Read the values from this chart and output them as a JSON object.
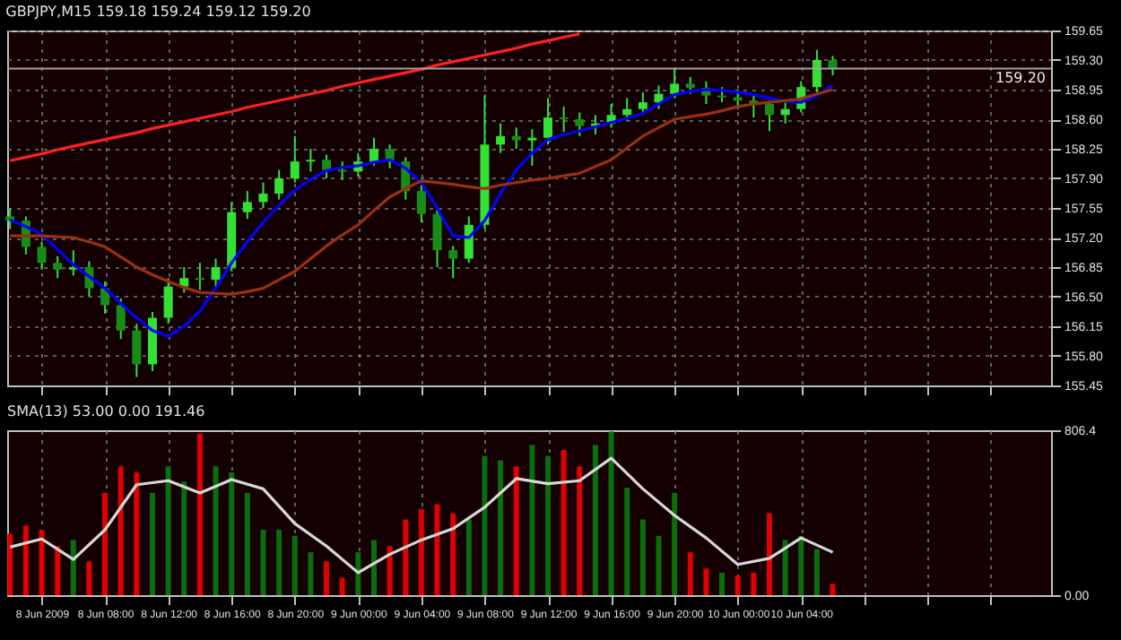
{
  "chart_data": [
    {
      "type": "candlestick",
      "title": "GBPJPY,M15 159.18 159.24 159.12 159.20",
      "x": [
        "2009-06-08T02:00",
        "2009-06-08T03:00",
        "2009-06-08T04:00",
        "2009-06-08T05:00",
        "2009-06-08T06:00",
        "2009-06-08T07:00",
        "2009-06-08T08:00",
        "2009-06-08T09:00",
        "2009-06-08T10:00",
        "2009-06-08T11:00",
        "2009-06-08T12:00",
        "2009-06-08T13:00",
        "2009-06-08T14:00",
        "2009-06-08T15:00",
        "2009-06-08T16:00",
        "2009-06-08T17:00",
        "2009-06-08T18:00",
        "2009-06-08T19:00",
        "2009-06-08T20:00",
        "2009-06-08T21:00",
        "2009-06-08T22:00",
        "2009-06-08T23:00",
        "2009-06-09T00:00",
        "2009-06-09T01:00",
        "2009-06-09T02:00",
        "2009-06-09T03:00",
        "2009-06-09T04:00",
        "2009-06-09T05:00",
        "2009-06-09T06:00",
        "2009-06-09T07:00",
        "2009-06-09T08:00",
        "2009-06-09T09:00",
        "2009-06-09T10:00",
        "2009-06-09T11:00",
        "2009-06-09T12:00",
        "2009-06-09T13:00",
        "2009-06-09T14:00",
        "2009-06-09T15:00",
        "2009-06-09T16:00",
        "2009-06-09T17:00",
        "2009-06-09T18:00",
        "2009-06-09T19:00",
        "2009-06-09T20:00",
        "2009-06-09T21:00",
        "2009-06-09T22:00",
        "2009-06-09T23:00",
        "2009-06-10T00:00",
        "2009-06-10T01:00",
        "2009-06-10T02:00",
        "2009-06-10T03:00",
        "2009-06-10T04:00",
        "2009-06-10T05:00",
        "2009-06-10T06:00"
      ],
      "ohlc": [
        [
          157.45,
          157.55,
          157.3,
          157.4
        ],
        [
          157.4,
          157.45,
          157.0,
          157.09
        ],
        [
          157.09,
          157.15,
          156.82,
          156.9
        ],
        [
          156.9,
          156.98,
          156.72,
          156.82
        ],
        [
          156.82,
          157.05,
          156.75,
          156.85
        ],
        [
          156.85,
          156.92,
          156.5,
          156.6
        ],
        [
          156.6,
          156.68,
          156.3,
          156.4
        ],
        [
          156.4,
          156.48,
          156.0,
          156.1
        ],
        [
          156.1,
          156.18,
          155.55,
          155.7
        ],
        [
          155.7,
          156.32,
          155.62,
          156.25
        ],
        [
          156.25,
          156.72,
          156.18,
          156.62
        ],
        [
          156.62,
          156.85,
          156.55,
          156.72
        ],
        [
          156.72,
          156.9,
          156.58,
          156.7
        ],
        [
          156.7,
          156.95,
          156.6,
          156.85
        ],
        [
          156.85,
          157.62,
          156.8,
          157.5
        ],
        [
          157.5,
          157.75,
          157.42,
          157.62
        ],
        [
          157.62,
          157.85,
          157.55,
          157.72
        ],
        [
          157.72,
          158.0,
          157.65,
          157.9
        ],
        [
          157.9,
          158.4,
          157.85,
          158.1
        ],
        [
          158.1,
          158.25,
          157.98,
          158.12
        ],
        [
          158.12,
          158.18,
          157.9,
          158.0
        ],
        [
          158.0,
          158.1,
          157.88,
          157.98
        ],
        [
          157.98,
          158.2,
          157.92,
          158.1
        ],
        [
          158.1,
          158.38,
          158.05,
          158.25
        ],
        [
          158.25,
          158.3,
          158.02,
          158.1
        ],
        [
          158.1,
          158.15,
          157.65,
          157.75
        ],
        [
          157.75,
          157.82,
          157.38,
          157.48
        ],
        [
          157.48,
          157.55,
          156.85,
          157.05
        ],
        [
          157.05,
          157.1,
          156.72,
          156.95
        ],
        [
          156.95,
          157.45,
          156.9,
          157.35
        ],
        [
          157.35,
          158.88,
          157.3,
          158.3
        ],
        [
          158.3,
          158.55,
          158.2,
          158.4
        ],
        [
          158.4,
          158.5,
          158.25,
          158.35
        ],
        [
          158.35,
          158.48,
          158.05,
          158.38
        ],
        [
          158.38,
          158.85,
          158.3,
          158.62
        ],
        [
          158.62,
          158.75,
          158.45,
          158.6
        ],
        [
          158.6,
          158.68,
          158.4,
          158.52
        ],
        [
          158.52,
          158.65,
          158.42,
          158.55
        ],
        [
          158.55,
          158.78,
          158.5,
          158.65
        ],
        [
          158.65,
          158.85,
          158.58,
          158.72
        ],
        [
          158.72,
          158.92,
          158.65,
          158.8
        ],
        [
          158.8,
          159.0,
          158.72,
          158.9
        ],
        [
          158.9,
          159.2,
          158.85,
          159.02
        ],
        [
          159.02,
          159.1,
          158.9,
          158.97
        ],
        [
          158.97,
          159.05,
          158.78,
          158.88
        ],
        [
          158.88,
          158.98,
          158.8,
          158.86
        ],
        [
          158.86,
          158.95,
          158.72,
          158.82
        ],
        [
          158.82,
          158.9,
          158.62,
          158.78
        ],
        [
          158.78,
          158.82,
          158.46,
          158.65
        ],
        [
          158.65,
          158.8,
          158.55,
          158.72
        ],
        [
          158.72,
          159.05,
          158.68,
          158.98
        ],
        [
          158.98,
          159.42,
          158.92,
          159.3
        ],
        [
          159.3,
          159.35,
          159.12,
          159.2
        ]
      ],
      "series": [
        {
          "type": "line",
          "color": "#0000ff",
          "values": [
            157.41,
            157.33,
            157.24,
            157.06,
            156.88,
            156.74,
            156.6,
            156.42,
            156.25,
            156.1,
            156.03,
            156.15,
            156.33,
            156.6,
            156.9,
            157.15,
            157.38,
            157.58,
            157.76,
            157.89,
            157.99,
            158.03,
            158.05,
            158.09,
            158.12,
            158.02,
            157.85,
            157.55,
            157.22,
            157.2,
            157.4,
            157.72,
            158.0,
            158.2,
            158.36,
            158.42,
            158.46,
            158.51,
            158.56,
            158.61,
            158.67,
            158.78,
            158.89,
            158.93,
            158.95,
            158.94,
            158.92,
            158.89,
            158.85,
            158.81,
            158.8,
            158.88,
            159.0
          ]
        },
        {
          "type": "line",
          "color": "#9a3010",
          "values": [
            157.22,
            157.22,
            157.22,
            157.21,
            157.2,
            157.15,
            157.09,
            156.97,
            156.85,
            156.76,
            156.68,
            156.61,
            156.55,
            156.54,
            156.53,
            156.56,
            156.6,
            156.7,
            156.8,
            156.95,
            157.1,
            157.23,
            157.35,
            157.52,
            157.68,
            157.78,
            157.87,
            157.85,
            157.83,
            157.8,
            157.78,
            157.82,
            157.85,
            157.88,
            157.9,
            157.93,
            157.96,
            158.04,
            158.12,
            158.26,
            158.4,
            158.5,
            158.6,
            158.63,
            158.66,
            158.7,
            158.75,
            158.78,
            158.8,
            158.82,
            158.84,
            158.9,
            158.95
          ]
        },
        {
          "type": "line",
          "color": "#ff2020",
          "values": [
            158.11,
            158.15,
            158.19,
            158.24,
            158.28,
            158.32,
            158.36,
            158.4,
            158.44,
            158.49,
            158.53,
            158.57,
            158.61,
            158.65,
            158.69,
            158.74,
            158.78,
            158.82,
            158.86,
            158.9,
            158.94,
            158.99,
            159.03,
            159.07,
            159.11,
            159.15,
            159.19,
            159.24,
            159.28,
            159.32,
            159.36,
            159.4,
            159.44,
            159.49,
            159.53,
            159.57,
            159.61,
            null,
            null,
            null,
            null,
            null,
            null,
            null,
            null,
            null,
            null,
            null,
            null,
            null,
            null,
            null,
            null
          ]
        }
      ],
      "xlim": [
        "2009-06-08T01:49",
        "2009-06-10T19:48"
      ],
      "xticks": [
        {
          "value": "2009-06-08T04:00",
          "label": null
        },
        {
          "value": "2009-06-08T08:00",
          "label": null
        },
        {
          "value": "2009-06-08T12:00",
          "label": null
        },
        {
          "value": "2009-06-08T16:00",
          "label": null
        },
        {
          "value": "2009-06-08T20:00",
          "label": null
        },
        {
          "value": "2009-06-09T00:00",
          "label": null
        },
        {
          "value": "2009-06-09T04:00",
          "label": null
        },
        {
          "value": "2009-06-09T08:00",
          "label": null
        },
        {
          "value": "2009-06-09T12:00",
          "label": null
        },
        {
          "value": "2009-06-09T16:00",
          "label": null
        },
        {
          "value": "2009-06-09T20:00",
          "label": null
        },
        {
          "value": "2009-06-10T00:00",
          "label": null
        },
        {
          "value": "2009-06-10T04:00",
          "label": null
        },
        {
          "value": "2009-06-10T08:00",
          "label": null
        },
        {
          "value": "2009-06-10T12:00",
          "label": null
        },
        {
          "value": "2009-06-10T16:00",
          "label": null
        }
      ],
      "ylim": [
        155.45,
        159.65
      ],
      "yticks": [
        155.45,
        {
          "value": 155.8,
          "label": "155.80"
        },
        156.15,
        {
          "value": 156.5,
          "label": "156.50"
        },
        156.85,
        {
          "value": 157.2,
          "label": "157.20"
        },
        157.55,
        {
          "value": 157.9,
          "label": "157.90"
        },
        158.25,
        {
          "value": 158.6,
          "label": "158.60"
        },
        158.95,
        {
          "value": 159.3,
          "label": "159.30"
        },
        159.65
      ],
      "grid": true,
      "tick_labels": "y",
      "ref_lines": [
        {
          "axis": "y",
          "value": 159.2,
          "label": "159.20",
          "color": "#a0a0a0"
        }
      ]
    },
    {
      "type": "bar",
      "title": "SMA(13) 53.00 0.00 191.46",
      "x": [
        "2009-06-08T02:00",
        "2009-06-08T03:00",
        "2009-06-08T04:00",
        "2009-06-08T05:00",
        "2009-06-08T06:00",
        "2009-06-08T07:00",
        "2009-06-08T08:00",
        "2009-06-08T09:00",
        "2009-06-08T10:00",
        "2009-06-08T11:00",
        "2009-06-08T12:00",
        "2009-06-08T13:00",
        "2009-06-08T14:00",
        "2009-06-08T15:00",
        "2009-06-08T16:00",
        "2009-06-08T17:00",
        "2009-06-08T18:00",
        "2009-06-08T19:00",
        "2009-06-08T20:00",
        "2009-06-08T21:00",
        "2009-06-08T22:00",
        "2009-06-08T23:00",
        "2009-06-09T00:00",
        "2009-06-09T01:00",
        "2009-06-09T02:00",
        "2009-06-09T03:00",
        "2009-06-09T04:00",
        "2009-06-09T05:00",
        "2009-06-09T06:00",
        "2009-06-09T07:00",
        "2009-06-09T08:00",
        "2009-06-09T09:00",
        "2009-06-09T10:00",
        "2009-06-09T11:00",
        "2009-06-09T12:00",
        "2009-06-09T13:00",
        "2009-06-09T14:00",
        "2009-06-09T15:00",
        "2009-06-09T16:00",
        "2009-06-09T17:00",
        "2009-06-09T18:00",
        "2009-06-09T19:00",
        "2009-06-09T20:00",
        "2009-06-09T21:00",
        "2009-06-09T22:00",
        "2009-06-09T23:00",
        "2009-06-10T00:00",
        "2009-06-10T01:00",
        "2009-06-10T02:00",
        "2009-06-10T03:00",
        "2009-06-10T04:00",
        "2009-06-10T05:00",
        "2009-06-10T06:00"
      ],
      "series": [
        {
          "type": "bar",
          "values": [
            300,
            340,
            320,
            240,
            270,
            165,
            500,
            630,
            600,
            500,
            630,
            555,
            790,
            630,
            600,
            500,
            320,
            320,
            290,
            210,
            165,
            85,
            210,
            270,
            240,
            370,
            420,
            445,
            400,
            370,
            680,
            660,
            630,
            735,
            680,
            710,
            630,
            735,
            800,
            525,
            370,
            290,
            500,
            210,
            130,
            110,
            95,
            110,
            400,
            270,
            290,
            225,
            55
          ],
          "colors": [
            "#e00000",
            "#e00000",
            "#e00000",
            "#e00000",
            "#0a6e0a",
            "#e00000",
            "#e00000",
            "#e00000",
            "#e00000",
            "#0a6e0a",
            "#0a6e0a",
            "#0a6e0a",
            "#e00000",
            "#0a6e0a",
            "#0a6e0a",
            "#0a6e0a",
            "#0a6e0a",
            "#0a6e0a",
            "#0a6e0a",
            "#0a6e0a",
            "#e00000",
            "#e00000",
            "#0a6e0a",
            "#0a6e0a",
            "#e00000",
            "#e00000",
            "#e00000",
            "#e00000",
            "#e00000",
            "#0a6e0a",
            "#0a6e0a",
            "#0a6e0a",
            "#e00000",
            "#0a6e0a",
            "#0a6e0a",
            "#e00000",
            "#e00000",
            "#0a6e0a",
            "#0a6e0a",
            "#0a6e0a",
            "#0a6e0a",
            "#0a6e0a",
            "#0a6e0a",
            "#e00000",
            "#e00000",
            "#0a6e0a",
            "#e00000",
            "#e00000",
            "#e00000",
            "#0a6e0a",
            "#0a6e0a",
            "#0a6e0a",
            "#e00000"
          ]
        },
        {
          "type": "line",
          "color": "#d8d8d8",
          "x": [
            "2009-06-08T02:00",
            "2009-06-08T04:00",
            "2009-06-08T06:00",
            "2009-06-08T08:00",
            "2009-06-08T10:00",
            "2009-06-08T12:00",
            "2009-06-08T14:00",
            "2009-06-08T16:00",
            "2009-06-08T18:00",
            "2009-06-08T20:00",
            "2009-06-08T22:00",
            "2009-06-09T00:00",
            "2009-06-09T02:00",
            "2009-06-09T04:00",
            "2009-06-09T06:00",
            "2009-06-09T08:00",
            "2009-06-09T10:00",
            "2009-06-09T12:00",
            "2009-06-09T14:00",
            "2009-06-09T16:00",
            "2009-06-09T18:00",
            "2009-06-09T20:00",
            "2009-06-09T22:00",
            "2009-06-10T00:00",
            "2009-06-10T02:00",
            "2009-06-10T04:00",
            "2009-06-10T06:00"
          ],
          "values": [
            235,
            275,
            175,
            320,
            540,
            560,
            500,
            565,
            520,
            350,
            240,
            110,
            200,
            270,
            325,
            430,
            570,
            545,
            560,
            670,
            520,
            390,
            280,
            150,
            180,
            280,
            210
          ]
        }
      ],
      "xlim": [
        "2009-06-08T01:49",
        "2009-06-10T19:48"
      ],
      "xticks": [
        {
          "value": "2009-06-08T04:00",
          "label": "8 Jun 2009"
        },
        {
          "value": "2009-06-08T08:00",
          "label": "8 Jun 08:00"
        },
        {
          "value": "2009-06-08T12:00",
          "label": "8 Jun 12:00"
        },
        {
          "value": "2009-06-08T16:00",
          "label": "8 Jun 16:00"
        },
        {
          "value": "2009-06-08T20:00",
          "label": "8 Jun 20:00"
        },
        {
          "value": "2009-06-09T00:00",
          "label": "9 Jun 00:00"
        },
        {
          "value": "2009-06-09T04:00",
          "label": "9 Jun 04:00"
        },
        {
          "value": "2009-06-09T08:00",
          "label": "9 Jun 08:00"
        },
        {
          "value": "2009-06-09T12:00",
          "label": "9 Jun 12:00"
        },
        {
          "value": "2009-06-09T16:00",
          "label": "9 Jun 16:00"
        },
        {
          "value": "2009-06-09T20:00",
          "label": "9 Jun 20:00"
        },
        {
          "value": "2009-06-10T00:00",
          "label": "10 Jun 00:00"
        },
        {
          "value": "2009-06-10T04:00",
          "label": "10 Jun 04:00"
        },
        {
          "value": "2009-06-10T08:00",
          "label": null
        },
        {
          "value": "2009-06-10T12:00",
          "label": null
        },
        {
          "value": "2009-06-10T16:00",
          "label": null
        }
      ],
      "ylim": [
        0,
        806.4
      ],
      "yticks": [
        {
          "value": 0,
          "label": "0.00"
        },
        806.4
      ],
      "grid": "x"
    }
  ]
}
